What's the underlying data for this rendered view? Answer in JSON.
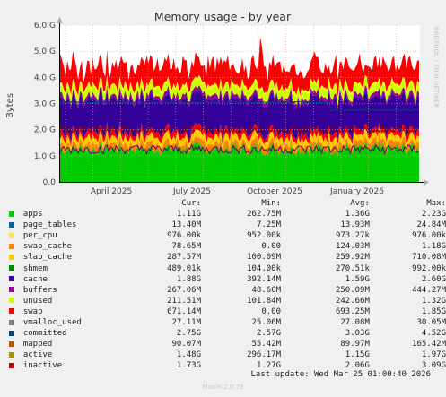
{
  "chart_data": {
    "type": "area",
    "title": "Memory usage - by year",
    "ylabel": "Bytes",
    "ylim": [
      0,
      6.0
    ],
    "yticks": [
      "0.0",
      "1.0 G",
      "2.0 G",
      "3.0 G",
      "4.0 G",
      "5.0 G",
      "6.0 G"
    ],
    "xticks": [
      "April 2025",
      "July 2025",
      "October 2025",
      "January 2026"
    ],
    "grid": true,
    "side_label": "RRDTOOL / TOBI OETIKER",
    "columns": [
      "Cur:",
      "Min:",
      "Avg:",
      "Max:"
    ],
    "series": [
      {
        "name": "apps",
        "color": "#00cc00",
        "cur": "1.11G",
        "min": "262.75M",
        "avg": "1.36G",
        "max": "2.23G"
      },
      {
        "name": "page_tables",
        "color": "#0066b3",
        "cur": "13.40M",
        "min": "7.25M",
        "avg": "13.93M",
        "max": "24.84M"
      },
      {
        "name": "per_cpu",
        "color": "#ff8000",
        "cur": "976.00k",
        "min": "952.00k",
        "avg": "973.27k",
        "max": "976.00k"
      },
      {
        "name": "swap_cache",
        "color": "#ffcc00",
        "cur": "78.65M",
        "min": "0.00",
        "avg": "124.03M",
        "max": "1.18G"
      },
      {
        "name": "slab_cache",
        "color": "#330099",
        "cur": "287.57M",
        "min": "100.09M",
        "avg": "259.92M",
        "max": "710.08M"
      },
      {
        "name": "shmem",
        "color": "#990099",
        "cur": "489.01k",
        "min": "104.00k",
        "avg": "270.51k",
        "max": "992.00k"
      },
      {
        "name": "cache",
        "color": "#ccff00",
        "cur": "1.88G",
        "min": "392.14M",
        "avg": "1.59G",
        "max": "2.60G"
      },
      {
        "name": "buffers",
        "color": "#ff0000",
        "cur": "267.06M",
        "min": "48.60M",
        "avg": "250.09M",
        "max": "444.27M"
      },
      {
        "name": "unused",
        "color": "#808080",
        "cur": "211.51M",
        "min": "101.84M",
        "avg": "242.66M",
        "max": "1.32G"
      },
      {
        "name": "swap",
        "color": "#008f00",
        "cur": "671.14M",
        "min": "0.00",
        "avg": "693.25M",
        "max": "1.85G"
      },
      {
        "name": "vmalloc_used",
        "color": "#00487d",
        "cur": "27.11M",
        "min": "25.06M",
        "avg": "27.08M",
        "max": "30.05M"
      },
      {
        "name": "committed",
        "color": "#b35a00",
        "cur": "2.75G",
        "min": "2.57G",
        "avg": "3.03G",
        "max": "4.52G"
      },
      {
        "name": "mapped",
        "color": "#b38f00",
        "cur": "90.07M",
        "min": "55.42M",
        "avg": "89.97M",
        "max": "165.42M"
      },
      {
        "name": "active",
        "color": "#6b006b",
        "cur": "1.48G",
        "min": "296.17M",
        "avg": "1.15G",
        "max": "1.97G"
      },
      {
        "name": "inactive",
        "color": "#8fb300",
        "cur": "1.73G",
        "min": "1.27G",
        "avg": "2.06G",
        "max": "3.09G"
      }
    ]
  },
  "legend_colors": [
    "#00cc00",
    "#0066b3",
    "#ffe066",
    "#ff8000",
    "#ffcc00",
    "#008f00",
    "#330099",
    "#990099",
    "#ccff00",
    "#ff0000",
    "#808080",
    "#00487d",
    "#b35a00",
    "#b38f00",
    "#b30000"
  ],
  "last_update": "Last update: Wed Mar 25 01:00:40 2026",
  "munin_version": "Munin 2.0.73"
}
